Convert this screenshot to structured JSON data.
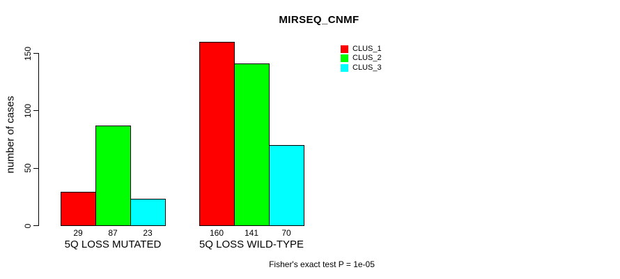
{
  "title": "MIRSEQ_CNMF",
  "y_axis": {
    "label": "number of cases",
    "ticks": [
      0,
      50,
      100,
      150
    ]
  },
  "x_axis": {
    "group_labels": [
      "5Q LOSS MUTATED",
      "5Q LOSS WILD-TYPE"
    ]
  },
  "caption": "Fisher's exact test P = 1e-05",
  "colors": {
    "clus_1": "#ff0000",
    "clus_2": "#00ff00",
    "clus_3": "#00ffff",
    "bar_border": "#000000",
    "axis": "#000000",
    "background": "#ffffff",
    "text": "#000000"
  },
  "legend": {
    "position": "top-right",
    "items": [
      {
        "label": "CLUS_1",
        "color": "#ff0000"
      },
      {
        "label": "CLUS_2",
        "color": "#00ff00"
      },
      {
        "label": "CLUS_3",
        "color": "#00ffff"
      }
    ]
  },
  "chart_data": {
    "type": "bar",
    "title": "MIRSEQ_CNMF",
    "xlabel": "",
    "ylabel": "number of cases",
    "categories": [
      "5Q LOSS MUTATED",
      "5Q LOSS WILD-TYPE"
    ],
    "series": [
      {
        "name": "CLUS_1",
        "color": "#ff0000",
        "values": [
          29,
          160
        ]
      },
      {
        "name": "CLUS_2",
        "color": "#00ff00",
        "values": [
          87,
          141
        ]
      },
      {
        "name": "CLUS_3",
        "color": "#00ffff",
        "values": [
          23,
          70
        ]
      }
    ],
    "yticks": [
      0,
      50,
      100,
      150
    ],
    "ylim": [
      0,
      160
    ],
    "grid": false,
    "bar_value_labels_shown": true,
    "legend_position": "top-right",
    "annotation": "Fisher's exact test P = 1e-05"
  }
}
